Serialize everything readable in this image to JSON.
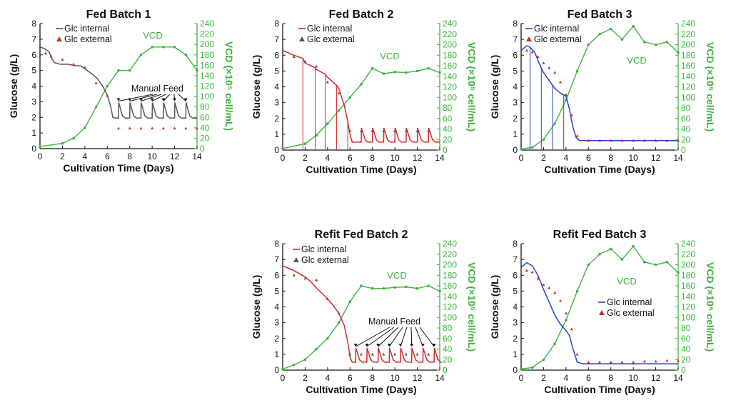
{
  "chart_data": [
    {
      "id": "fb1",
      "type": "line",
      "title": "Fed Batch 1",
      "xlabel": "Cultivation Time (Days)",
      "ylabel": "Glucose (g/L)",
      "y2label": "VCD (×10⁵ cell/mL)",
      "xlim": [
        0,
        14
      ],
      "ylim": [
        0,
        8
      ],
      "y2lim": [
        0,
        240
      ],
      "xticks": [
        "0",
        "2",
        "4",
        "6",
        "8",
        "10",
        "12",
        "14"
      ],
      "yticks": [
        "0",
        "1",
        "2",
        "3",
        "4",
        "5",
        "6",
        "7",
        "8"
      ],
      "y2ticks": [
        "0",
        "20",
        "40",
        "60",
        "80",
        "100",
        "120",
        "140",
        "160",
        "180",
        "200",
        "220",
        "240"
      ],
      "legend": [
        "Glc internal",
        "Glc external"
      ],
      "vcd_label": "VCD",
      "annotation": "Manual Feed",
      "series": [
        {
          "name": "Glc internal",
          "color": "#555555",
          "x": [
            0,
            0.4,
            0.8,
            1.1,
            1.3,
            1.8,
            2.5,
            3.2,
            3.6,
            4.0,
            4.6,
            5.1,
            5.6,
            6.0,
            6.3,
            6.5,
            6.7,
            6.8,
            6.9,
            7.0,
            7.2,
            7.5,
            8,
            9,
            10,
            11,
            12,
            13,
            14
          ],
          "y": [
            6.5,
            6.4,
            6.2,
            5.7,
            5.5,
            5.4,
            5.4,
            5.3,
            5.3,
            5.1,
            4.8,
            4.5,
            4.0,
            3.4,
            2.7,
            2.0,
            1.3,
            0.8,
            2.6,
            2.3,
            2.0,
            1.95,
            1.95,
            1.95,
            1.95,
            1.95,
            1.95,
            1.95,
            1.95
          ]
        },
        {
          "name": "Glc external",
          "color": "#d62728",
          "x": [
            0.5,
            1,
            2,
            3,
            4,
            5,
            6,
            7,
            8,
            9,
            10,
            11,
            12,
            13,
            14
          ],
          "y": [
            6.1,
            5.9,
            5.7,
            5.4,
            5.2,
            4.2,
            3.4,
            1.3,
            1.3,
            1.3,
            1.3,
            1.3,
            1.3,
            1.3,
            1.3
          ]
        },
        {
          "name": "VCD",
          "color": "#3cb33c",
          "x": [
            0,
            2,
            3,
            4,
            5,
            6,
            7,
            8,
            9,
            10,
            11,
            12,
            13,
            14
          ],
          "y": [
            4,
            10,
            20,
            40,
            80,
            120,
            150,
            150,
            180,
            195,
            195,
            195,
            180,
            150
          ]
        }
      ],
      "feeds": [
        7,
        8,
        9,
        10,
        11,
        12,
        13
      ],
      "feed_height": 1.0
    },
    {
      "id": "fb2",
      "type": "line",
      "title": "Fed Batch 2",
      "xlabel": "Cultivation Time (Days)",
      "ylabel": "Glucose (g/L)",
      "y2label": "VCD (×10⁵ cell/mL)",
      "xlim": [
        0,
        14
      ],
      "ylim": [
        0,
        8
      ],
      "y2lim": [
        0,
        240
      ],
      "xticks": [
        "0",
        "2",
        "4",
        "6",
        "8",
        "10",
        "12",
        "14"
      ],
      "yticks": [
        "0",
        "1",
        "2",
        "3",
        "4",
        "5",
        "6",
        "7",
        "8"
      ],
      "y2ticks": [
        "0",
        "20",
        "40",
        "60",
        "80",
        "100",
        "120",
        "140",
        "160",
        "180",
        "200",
        "220",
        "240"
      ],
      "legend": [
        "Glc internal",
        "Glc external"
      ],
      "vcd_label": "VCD",
      "series": [
        {
          "name": "Glc internal",
          "color": "#d62728",
          "x": [
            0,
            1,
            1.8,
            2.0,
            2.9,
            3.0,
            3.8,
            4.0,
            4.8,
            5.0,
            5.5,
            5.8,
            6.0,
            6.2,
            7,
            8,
            9,
            10,
            11,
            12,
            13,
            14
          ],
          "y": [
            6.3,
            6.0,
            5.8,
            5.5,
            5.2,
            5.1,
            4.8,
            4.6,
            4.1,
            3.9,
            2.8,
            1.8,
            1.0,
            0.5,
            0.5,
            0.5,
            0.5,
            0.5,
            0.5,
            0.5,
            0.5,
            0.5
          ]
        },
        {
          "name": "Glc external",
          "color": "#555555",
          "x": [
            1,
            2,
            3,
            4,
            5,
            6,
            7,
            8,
            9,
            10,
            11,
            12,
            13
          ],
          "y": [
            5.9,
            5.6,
            5.3,
            4.3,
            3.6,
            1.2,
            1.2,
            1.2,
            1.2,
            1.2,
            1.2,
            1.2,
            1.2
          ]
        },
        {
          "name": "VCD",
          "color": "#3cb33c",
          "x": [
            0,
            2,
            3,
            4,
            5,
            6,
            7,
            8,
            9,
            10,
            11,
            12,
            13,
            14
          ],
          "y": [
            3,
            12,
            28,
            50,
            75,
            100,
            125,
            155,
            145,
            148,
            147,
            150,
            155,
            147
          ]
        }
      ],
      "spikes": [
        1.8,
        2.9,
        3.8,
        4.8,
        5.8
      ],
      "feeds": [
        7,
        8,
        9,
        10,
        11,
        12,
        13
      ],
      "feed_height": 0.9
    },
    {
      "id": "fb3",
      "type": "line",
      "title": "Fed Batch 3",
      "xlabel": "Cultivation Time (Days)",
      "ylabel": "Glucose (g/L)",
      "y2label": "VCD (×10⁵ cell/mL)",
      "xlim": [
        0,
        14
      ],
      "ylim": [
        0,
        8
      ],
      "y2lim": [
        0,
        240
      ],
      "xticks": [
        "0",
        "2",
        "4",
        "6",
        "8",
        "10",
        "12",
        "14"
      ],
      "yticks": [
        "0",
        "1",
        "2",
        "3",
        "4",
        "5",
        "6",
        "7",
        "8"
      ],
      "y2ticks": [
        "0",
        "20",
        "40",
        "60",
        "80",
        "100",
        "120",
        "140",
        "160",
        "180",
        "200",
        "220",
        "240"
      ],
      "legend": [
        "Glc internal",
        "Glc external"
      ],
      "vcd_label": "VCD",
      "series": [
        {
          "name": "Glc internal",
          "color": "#2a3fd0",
          "x": [
            0,
            0.5,
            0.8,
            1.2,
            1.6,
            2.0,
            2.5,
            3.0,
            3.5,
            4.0,
            4.3,
            4.6,
            4.9,
            5.2,
            5.6,
            6,
            7,
            8,
            9,
            10,
            11,
            12,
            13,
            14
          ],
          "y": [
            6.3,
            6.6,
            6.5,
            6.2,
            5.5,
            4.9,
            4.4,
            3.9,
            3.6,
            3.4,
            2.6,
            1.5,
            0.8,
            0.6,
            0.6,
            0.6,
            0.6,
            0.6,
            0.6,
            0.6,
            0.6,
            0.6,
            0.6,
            0.6
          ]
        },
        {
          "name": "Glc external",
          "color": "#d62728",
          "x": [
            0.5,
            1.0,
            1.5,
            2,
            2.5,
            3,
            3.5,
            4,
            4.5,
            5,
            6,
            7,
            8,
            9,
            10,
            11,
            12,
            13,
            14
          ],
          "y": [
            6.3,
            6.2,
            5.9,
            5.5,
            5.2,
            4.9,
            4.3,
            3.5,
            2.2,
            0.9,
            0.6,
            0.6,
            0.6,
            0.6,
            0.6,
            0.6,
            0.6,
            0.6,
            0.6
          ]
        },
        {
          "name": "VCD",
          "color": "#3cb33c",
          "x": [
            0,
            1,
            2,
            3,
            4,
            5,
            6,
            7,
            8,
            9,
            10,
            11,
            12,
            13,
            14
          ],
          "y": [
            2,
            5,
            20,
            50,
            95,
            150,
            200,
            220,
            230,
            210,
            235,
            205,
            200,
            205,
            185
          ]
        }
      ],
      "spikes": [
        0.8,
        1.8,
        2.8,
        3.8
      ]
    },
    {
      "id": "rfb2",
      "type": "line",
      "title": "Refit Fed Batch 2",
      "xlabel": "Cultivation Time (Days)",
      "ylabel": "Glucose (g/L)",
      "y2label": "VCD (×10⁵ cell/mL)",
      "xlim": [
        0,
        14
      ],
      "ylim": [
        0,
        8
      ],
      "y2lim": [
        0,
        240
      ],
      "xticks": [
        "0",
        "2",
        "4",
        "6",
        "8",
        "10",
        "12",
        "14"
      ],
      "yticks": [
        "0",
        "1",
        "2",
        "3",
        "4",
        "5",
        "6",
        "7",
        "8"
      ],
      "y2ticks": [
        "0",
        "20",
        "40",
        "60",
        "80",
        "100",
        "120",
        "140",
        "160",
        "180",
        "200",
        "220",
        "240"
      ],
      "legend": [
        "Glc internal",
        "Glc external"
      ],
      "vcd_label": "VCD",
      "annotation": "Manual Feed",
      "series": [
        {
          "name": "Glc internal",
          "color": "#d62728",
          "x": [
            0,
            1,
            2,
            2.5,
            3,
            4,
            4.5,
            5,
            5.5,
            5.8,
            6.0,
            6.3,
            7,
            8,
            9,
            10,
            11,
            12,
            13,
            14
          ],
          "y": [
            6.6,
            6.3,
            5.9,
            5.6,
            5.2,
            4.5,
            4.1,
            3.6,
            2.8,
            1.8,
            0.8,
            0.5,
            0.5,
            0.5,
            0.5,
            0.5,
            0.5,
            0.5,
            0.5,
            0.5
          ]
        },
        {
          "name": "Glc external",
          "color": "#555555",
          "x": [
            1,
            2,
            3,
            4,
            5,
            6,
            7,
            8,
            9,
            10,
            11,
            12,
            13
          ],
          "y": [
            6.0,
            5.8,
            5.7,
            4.5,
            3.6,
            1.0,
            1.0,
            1.0,
            1.0,
            1.0,
            1.0,
            1.0,
            1.0
          ]
        },
        {
          "name": "VCD",
          "color": "#3cb33c",
          "x": [
            0,
            1,
            2,
            3,
            4,
            5,
            6,
            7,
            8,
            9,
            10,
            11,
            12,
            13,
            14
          ],
          "y": [
            2,
            10,
            20,
            40,
            60,
            90,
            130,
            160,
            155,
            155,
            157,
            158,
            155,
            160,
            150
          ]
        }
      ],
      "feeds": [
        6.5,
        7.5,
        8.5,
        9.5,
        10.5,
        11.5,
        12.5,
        13.5
      ],
      "feed_height": 0.9
    },
    {
      "id": "rfb3",
      "type": "line",
      "title": "Refit Fed Batch 3",
      "xlabel": "Cultivation Time (Days)",
      "ylabel": "Glucose (g/L)",
      "y2label": "VCD (×10⁵ cell/mL)",
      "xlim": [
        0,
        14
      ],
      "ylim": [
        0,
        8
      ],
      "y2lim": [
        0,
        240
      ],
      "xticks": [
        "0",
        "2",
        "4",
        "6",
        "8",
        "10",
        "12",
        "14"
      ],
      "yticks": [
        "0",
        "1",
        "2",
        "3",
        "4",
        "5",
        "6",
        "7",
        "8"
      ],
      "y2ticks": [
        "0",
        "20",
        "40",
        "60",
        "80",
        "100",
        "120",
        "140",
        "160",
        "180",
        "200",
        "220",
        "240"
      ],
      "legend": [
        "Glc internal",
        "Glc external"
      ],
      "vcd_label": "VCD",
      "series": [
        {
          "name": "Glc internal",
          "color": "#2a3fd0",
          "x": [
            0,
            0.5,
            1,
            1.5,
            2,
            2.5,
            3,
            3.5,
            4,
            4.3,
            4.6,
            5,
            5.5,
            6,
            7,
            8,
            9,
            10,
            11,
            12,
            13,
            14
          ],
          "y": [
            6.5,
            6.8,
            6.6,
            6.0,
            5.1,
            4.3,
            3.5,
            2.9,
            2.5,
            2.2,
            1.4,
            0.5,
            0.4,
            0.4,
            0.4,
            0.4,
            0.4,
            0.4,
            0.4,
            0.4,
            0.4,
            0.4
          ]
        },
        {
          "name": "Glc external",
          "color": "#d62728",
          "x": [
            0.5,
            1.0,
            1.5,
            2,
            2.5,
            3,
            3.5,
            4,
            4.5,
            5,
            6,
            7,
            8,
            9,
            10,
            11,
            12,
            13,
            14
          ],
          "y": [
            6.3,
            6.2,
            5.8,
            5.4,
            5.2,
            4.9,
            4.4,
            3.6,
            2.6,
            1.0,
            0.5,
            0.5,
            0.5,
            0.5,
            0.5,
            0.55,
            0.55,
            0.6,
            0.6
          ]
        },
        {
          "name": "VCD",
          "color": "#3cb33c",
          "x": [
            0,
            1,
            2,
            3,
            4,
            5,
            6,
            7,
            8,
            9,
            10,
            11,
            12,
            13,
            14
          ],
          "y": [
            2,
            5,
            20,
            50,
            95,
            150,
            200,
            220,
            230,
            210,
            235,
            205,
            200,
            205,
            185
          ]
        }
      ]
    }
  ]
}
